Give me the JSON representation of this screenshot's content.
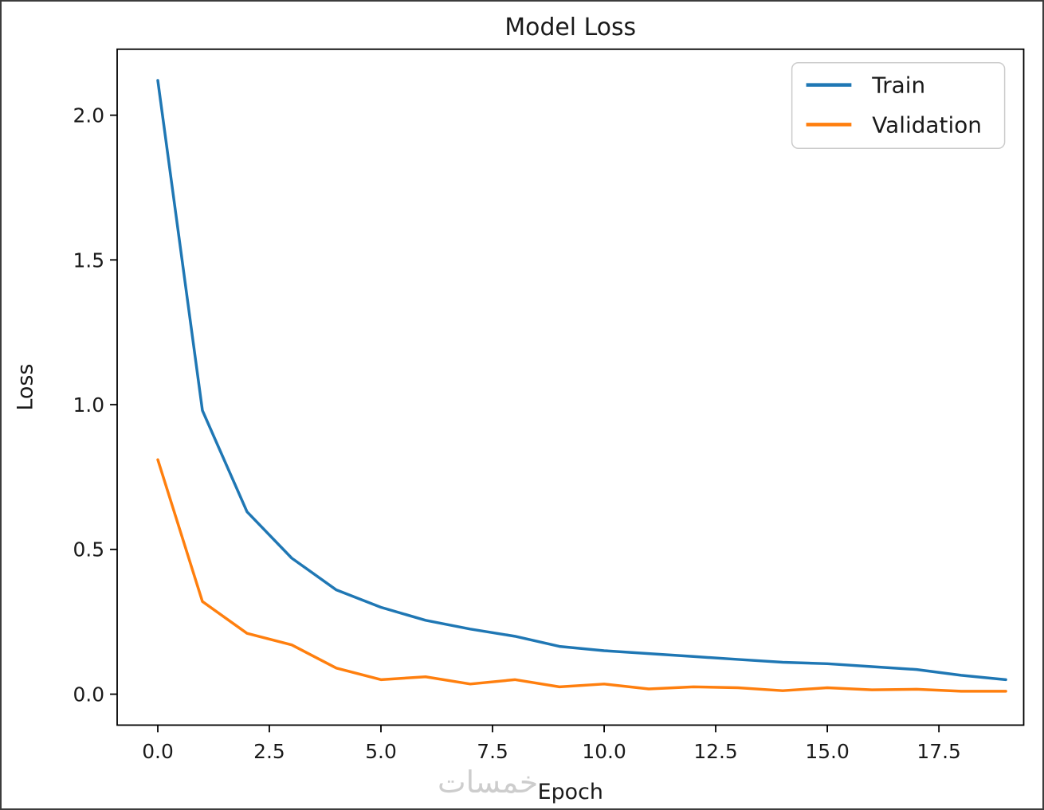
{
  "watermark": "خمسات",
  "chart_data": {
    "type": "line",
    "title": "Model Loss",
    "xlabel": "Epoch",
    "ylabel": "Loss",
    "grid": false,
    "legend_position": "upper right",
    "xlim": [
      -0.91,
      19.4
    ],
    "ylim": [
      -0.107,
      2.228
    ],
    "x_ticks": [
      0.0,
      2.5,
      5.0,
      7.5,
      10.0,
      12.5,
      15.0,
      17.5
    ],
    "y_ticks": [
      0.0,
      0.5,
      1.0,
      1.5,
      2.0
    ],
    "x": [
      0,
      1,
      2,
      3,
      4,
      5,
      6,
      7,
      8,
      9,
      10,
      11,
      12,
      13,
      14,
      15,
      16,
      17,
      18,
      19
    ],
    "series": [
      {
        "name": "Train",
        "color": "#1f77b4",
        "values": [
          2.12,
          0.98,
          0.63,
          0.47,
          0.36,
          0.3,
          0.255,
          0.225,
          0.2,
          0.165,
          0.15,
          0.14,
          0.13,
          0.12,
          0.11,
          0.105,
          0.095,
          0.085,
          0.065,
          0.05
        ]
      },
      {
        "name": "Validation",
        "color": "#ff7f0e",
        "values": [
          0.81,
          0.32,
          0.21,
          0.17,
          0.09,
          0.05,
          0.06,
          0.035,
          0.05,
          0.025,
          0.035,
          0.018,
          0.025,
          0.022,
          0.012,
          0.022,
          0.015,
          0.017,
          0.01,
          0.01
        ]
      }
    ]
  }
}
